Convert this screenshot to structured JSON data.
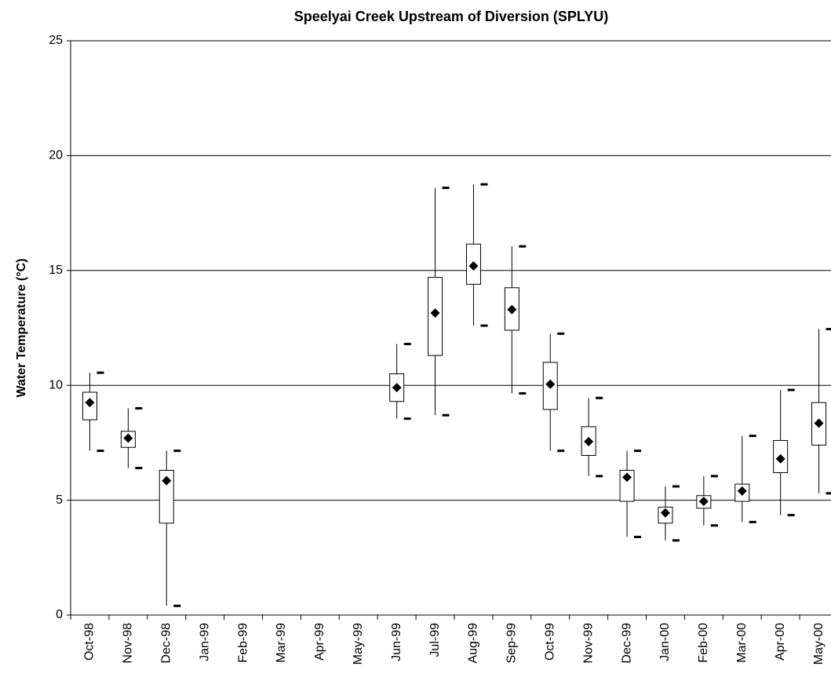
{
  "chart_data": {
    "type": "box",
    "title": "Speelyai Creek Upstream of Diversion (SPLYU)",
    "y_label": "Water Temperature (°C)",
    "categories": [
      "Oct-98",
      "Nov-98",
      "Dec-98",
      "Jan-99",
      "Feb-99",
      "Mar-99",
      "Apr-99",
      "May-99",
      "Jun-99",
      "Jul-99",
      "Aug-99",
      "Sep-99",
      "Oct-99",
      "Nov-99",
      "Dec-99",
      "Jan-00",
      "Feb-00",
      "Mar-00",
      "Apr-00",
      "May-00"
    ],
    "min": [
      7.15,
      6.4,
      0.4,
      null,
      null,
      null,
      null,
      null,
      8.55,
      8.7,
      12.6,
      9.65,
      7.15,
      6.05,
      3.4,
      3.25,
      3.9,
      4.05,
      4.35,
      5.3
    ],
    "q1": [
      8.5,
      7.3,
      4.0,
      null,
      null,
      null,
      null,
      null,
      9.3,
      11.3,
      14.4,
      12.4,
      8.95,
      6.95,
      4.95,
      4.0,
      4.65,
      4.95,
      6.2,
      7.4
    ],
    "mean": [
      9.25,
      7.7,
      5.85,
      null,
      null,
      null,
      null,
      null,
      9.9,
      13.15,
      15.2,
      13.3,
      10.05,
      7.55,
      6.0,
      4.45,
      4.95,
      5.4,
      6.8,
      8.35
    ],
    "q3": [
      9.7,
      8.0,
      6.3,
      null,
      null,
      null,
      null,
      null,
      10.5,
      14.7,
      16.15,
      14.25,
      11.0,
      8.2,
      6.3,
      4.7,
      5.2,
      5.7,
      7.6,
      9.25
    ],
    "max": [
      10.55,
      9.0,
      7.15,
      null,
      null,
      null,
      null,
      null,
      11.8,
      18.6,
      18.75,
      16.05,
      12.25,
      9.45,
      7.15,
      5.6,
      6.05,
      7.8,
      9.8,
      12.45
    ],
    "ylim": [
      0,
      25
    ],
    "yticks": [
      0,
      5,
      10,
      15,
      20,
      25
    ],
    "grid": true,
    "color": "#000000",
    "box_fill": "#ffffff"
  }
}
